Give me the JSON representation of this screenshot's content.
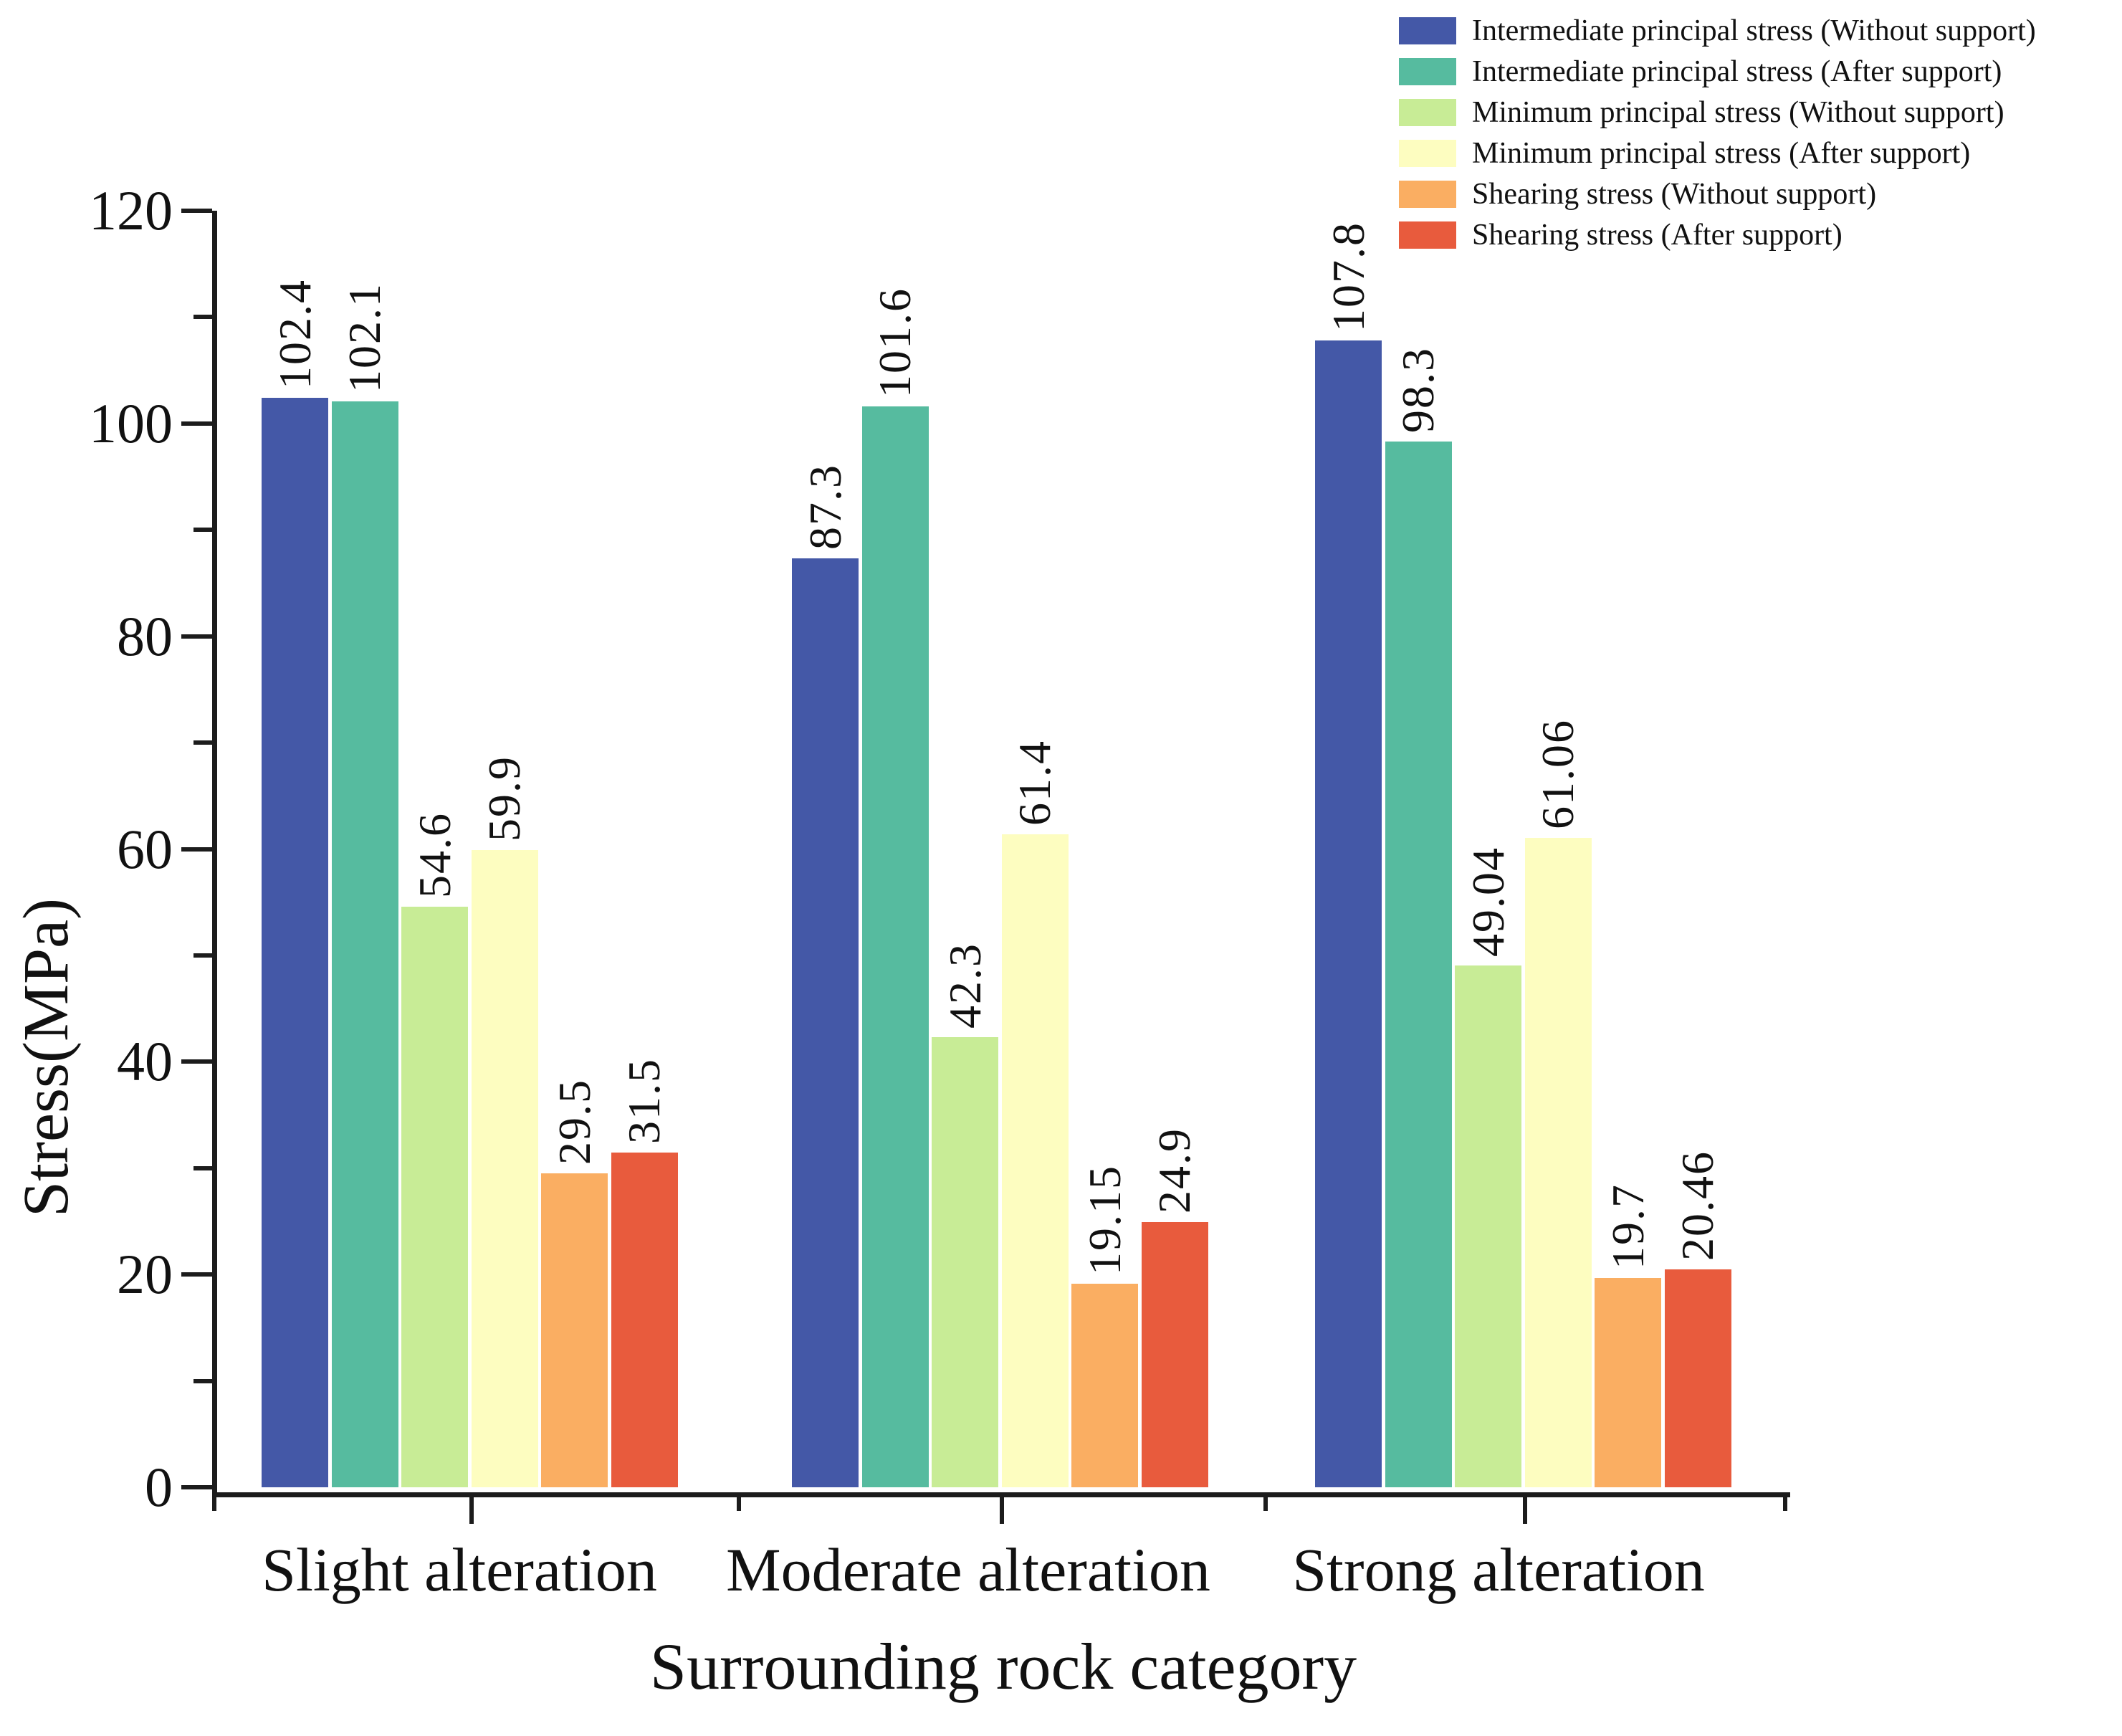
{
  "page": {
    "background": "#ffffff"
  },
  "chart_data": {
    "type": "bar",
    "title": "",
    "xlabel": "Surrounding rock category",
    "ylabel": "Stress(MPa)",
    "ylim": [
      0,
      120
    ],
    "y_major_ticks": [
      0,
      20,
      40,
      60,
      80,
      100,
      120
    ],
    "y_minor_ticks": [
      10,
      30,
      50,
      70,
      90,
      110
    ],
    "grid": false,
    "legend_position": "top-right",
    "bar_value_labels_rotated_90": true,
    "categories": [
      "Slight alteration",
      "Moderate alteration",
      "Strong alteration"
    ],
    "series": [
      {
        "name": "Intermediate principal stress（Without support）",
        "color": "#4458A7",
        "values": [
          102.4,
          87.3,
          107.8
        ],
        "labels": [
          "102.4",
          "87.3",
          "107.8"
        ]
      },
      {
        "name": "Intermediate principal stress（After support）",
        "color": "#56BB9F",
        "values": [
          102.1,
          101.6,
          98.3
        ],
        "labels": [
          "102.1",
          "101.6",
          "98.3"
        ]
      },
      {
        "name": "Minimum principal stress（Without support）",
        "color": "#C8EC96",
        "values": [
          54.6,
          42.3,
          49.04
        ],
        "labels": [
          "54.6",
          "42.3",
          "49.04"
        ]
      },
      {
        "name": "Minimum principal stress（After support）",
        "color": "#FDFDC0",
        "values": [
          59.9,
          61.4,
          61.06
        ],
        "labels": [
          "59.9",
          "61.4",
          "61.06"
        ]
      },
      {
        "name": "Shearing stress（Without support）",
        "color": "#FAAE62",
        "values": [
          29.5,
          19.15,
          19.7
        ],
        "labels": [
          "29.5",
          "19.15",
          "19.7"
        ]
      },
      {
        "name": "Shearing stress（After support）",
        "color": "#E85B3D",
        "values": [
          31.5,
          24.9,
          20.46
        ],
        "labels": [
          "31.5",
          "24.9",
          "20.46"
        ]
      }
    ],
    "axis_color": "#1c1c1c",
    "text_color": "#111111"
  }
}
